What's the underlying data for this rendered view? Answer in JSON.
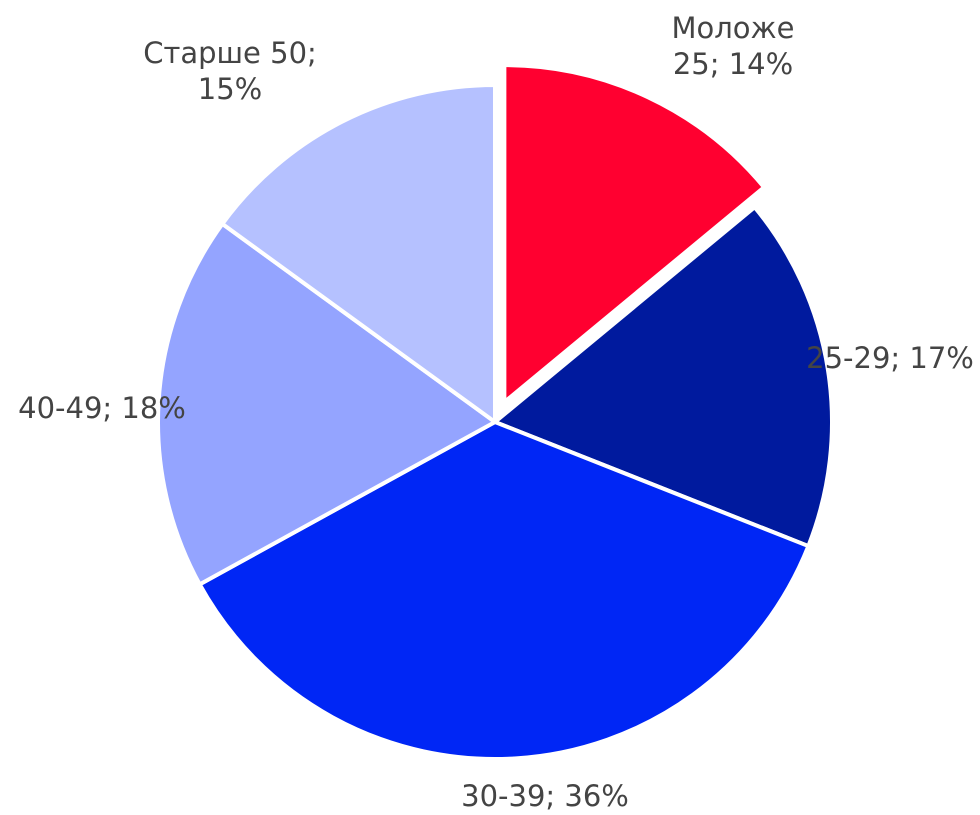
{
  "chart_data": {
    "type": "pie",
    "categories": [
      "Моложе 25",
      "25-29",
      "30-39",
      "40-49",
      "Старше 50"
    ],
    "values": [
      14,
      17,
      36,
      18,
      15
    ],
    "value_labels": [
      "Моложе 25; 14%",
      "25-29; 17%",
      "30-39; 36%",
      "40-49; 18%",
      "Старше 50; 15%"
    ],
    "colors": [
      "#ff0030",
      "#001a9e",
      "#0026f5",
      "#94a4ff",
      "#b5c1ff"
    ]
  }
}
